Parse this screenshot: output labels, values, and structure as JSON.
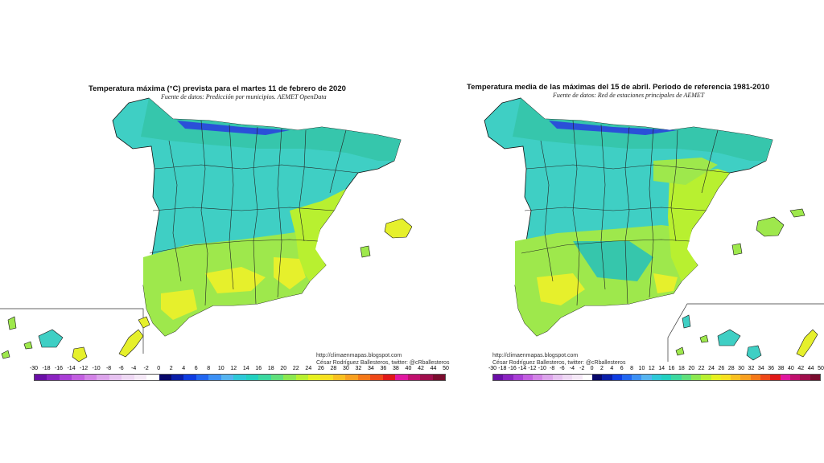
{
  "left_panel": {
    "title": "Temperatura máxima (°C) prevista para el martes 11 de febrero de 2020",
    "source": "Fuente de datos: Predicción por municipios. AEMET OpenData",
    "credit_url": "http://climaenmapas.blogspot.com",
    "credit_author": "César Rodríguez Ballesteros, twitter: @cRballesteros",
    "scale_labels": [
      "-30",
      "-18",
      "-16",
      "-14",
      "-12",
      "-10",
      "-8",
      "-6",
      "-4",
      "-2",
      "0",
      "2",
      "4",
      "6",
      "8",
      "10",
      "12",
      "14",
      "16",
      "18",
      "20",
      "22",
      "24",
      "26",
      "28",
      "30",
      "32",
      "34",
      "36",
      "38",
      "40",
      "42",
      "44",
      "50"
    ]
  },
  "right_panel": {
    "title": "Temperatura media de las máximas del 15 de abril. Periodo de referencia 1981-2010",
    "source": "Fuente de datos: Red de estaciones principales de AEMET",
    "credit_url": "http://climaenmapas.blogspot.com",
    "credit_author": "César Rodríguez Ballesteros, twitter: @cRballesteros",
    "scale_labels": [
      "-30",
      "-18",
      "-16",
      "-14",
      "-12",
      "-10",
      "-8",
      "-6",
      "-4",
      "-2",
      "0",
      "2",
      "4",
      "6",
      "8",
      "10",
      "12",
      "14",
      "16",
      "18",
      "20",
      "22",
      "24",
      "26",
      "28",
      "30",
      "32",
      "34",
      "36",
      "38",
      "40",
      "42",
      "44",
      "50"
    ]
  },
  "scale_colors": [
    "#6a0fa6",
    "#8a24c0",
    "#a93fd6",
    "#c25fe0",
    "#d283e6",
    "#dca4eb",
    "#e6c2f0",
    "#eed8f3",
    "#f5e9f7",
    "#ffffff",
    "#08086a",
    "#0a1ea8",
    "#0f3ce0",
    "#2266f0",
    "#3d90f4",
    "#56b4f0",
    "#2ec8d8",
    "#22d0c0",
    "#3cd8a0",
    "#60e07c",
    "#8ce850",
    "#b8f030",
    "#e6f020",
    "#f6e020",
    "#f8c020",
    "#f8a020",
    "#f47818",
    "#ee4818",
    "#e01818",
    "#e018a0",
    "#c0106e",
    "#a00e4c",
    "#7a0c2e"
  ],
  "map_colors": {
    "cool": "#3fcfc4",
    "mild": "#36c6ac",
    "warm": "#9ee84c",
    "hot": "#e6f02c",
    "coast": "#f0f030",
    "snow": "#2a50d8"
  }
}
